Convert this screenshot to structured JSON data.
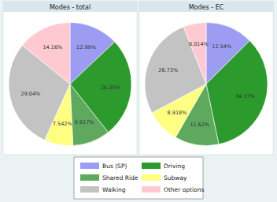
{
  "chart_data": [
    {
      "type": "pie",
      "title": "Modes - total",
      "categories": [
        "Bus (SP)",
        "Driving",
        "Shared Ride",
        "Subway",
        "Walking",
        "Other options"
      ],
      "values": [
        12.99,
        26.35,
        9.917,
        7.542,
        29.04,
        14.16
      ],
      "value_labels": [
        "12.99%",
        "26.35%",
        "9.917%",
        "7.542%",
        "29.04%",
        "14.16%"
      ],
      "colors": [
        "#9c9cf3",
        "#2c9a2c",
        "#5fa95f",
        "#ffff82",
        "#c3c3c3",
        "#ffc9d1"
      ],
      "data_labels": true,
      "legend": "bottom"
    },
    {
      "type": "pie",
      "title": "Modes - EC",
      "values": [
        12.54,
        34.17,
        11.62,
        8.918,
        26.73,
        6.014
      ],
      "value_labels": [
        "12.54%",
        "34.17%",
        "11.62%",
        "8.918%",
        "26.73%",
        "6.014%"
      ],
      "colors": [
        "#9c9cf3",
        "#2c9a2c",
        "#5fa95f",
        "#ffff82",
        "#c3c3c3",
        "#ffc9d1"
      ],
      "data_labels": true
    }
  ]
}
